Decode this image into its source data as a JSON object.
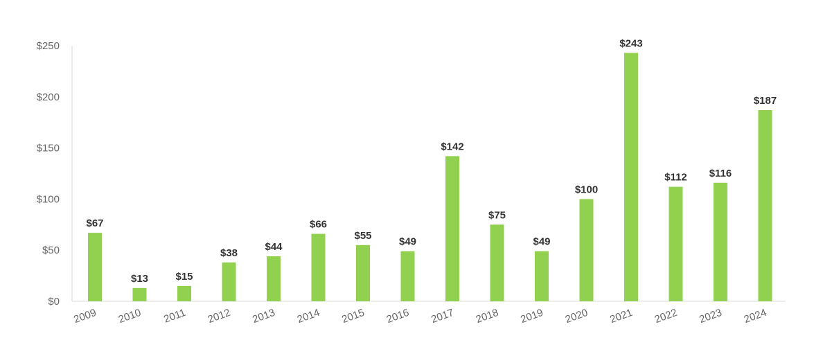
{
  "chart_data": {
    "type": "bar",
    "title": "",
    "xlabel": "",
    "ylabel": "",
    "categories": [
      "2009",
      "2010",
      "2011",
      "2012",
      "2013",
      "2014",
      "2015",
      "2016",
      "2017",
      "2018",
      "2019",
      "2020",
      "2021",
      "2022",
      "2023",
      "2024"
    ],
    "values": [
      67,
      13,
      15,
      38,
      44,
      66,
      55,
      49,
      142,
      75,
      49,
      100,
      243,
      112,
      116,
      187
    ],
    "data_labels": [
      "$67",
      "$13",
      "$15",
      "$38",
      "$44",
      "$66",
      "$55",
      "$49",
      "$142",
      "$75",
      "$49",
      "$100",
      "$243",
      "$112",
      "$116",
      "$187"
    ],
    "ylim": [
      0,
      250
    ],
    "yticks": [
      0,
      50,
      100,
      150,
      200,
      250
    ],
    "ytick_labels": [
      "$0",
      "$50",
      "$100",
      "$150",
      "$200",
      "$250"
    ],
    "grid": false,
    "legend": "none",
    "bar_color": "#92d050"
  }
}
